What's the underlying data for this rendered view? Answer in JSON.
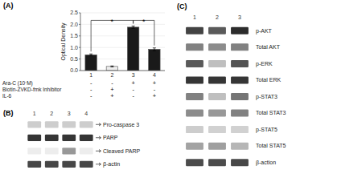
{
  "chart_data": [
    {
      "type": "bar",
      "title": "(A)",
      "categories": [
        "1",
        "2",
        "3",
        "4"
      ],
      "values": [
        0.68,
        0.18,
        1.88,
        0.92
      ],
      "errors": [
        0.04,
        0.02,
        0.05,
        0.06
      ],
      "colors": [
        "#1a1a1a",
        "#eeeeee",
        "#1a1a1a",
        "#1a1a1a"
      ],
      "ylabel": "Optical Density",
      "ylim": [
        0,
        2.5
      ],
      "yticks": [
        {
          "value": 0.0,
          "label": "0.0"
        },
        0.5,
        {
          "value": 1.0,
          "label": "1.0"
        },
        1.5,
        {
          "value": 2.0,
          "label": "2.0"
        },
        2.5
      ],
      "annotations": [
        {
          "text": "*",
          "from": "1",
          "to": "3"
        },
        {
          "text": "*",
          "from": "3",
          "to": "4"
        }
      ],
      "table": [
        {
          "label": "Ara-C (10⁻M)",
          "cells": [
            "-",
            "-",
            "+",
            "+"
          ]
        },
        {
          "label": "Biotin-ZVKD-fmk Inhibitor",
          "cells": [
            "-",
            "+",
            "-",
            "-"
          ]
        },
        {
          "label": "IL-6",
          "cells": [
            "-",
            "+",
            "-",
            "+"
          ]
        }
      ]
    },
    {
      "type": "heatmap",
      "title": "(B)",
      "categories": [
        "1",
        "2",
        "3",
        "4"
      ],
      "y_categories": [
        "Pro-caspase 3",
        "PARP",
        "Cleaved PARP",
        "β-actin"
      ],
      "cells": [
        [
          0.22,
          0.22,
          0.22,
          0.22
        ],
        [
          0.88,
          0.88,
          0.88,
          0.88
        ],
        [
          0.08,
          0.08,
          0.45,
          0.08
        ],
        [
          0.8,
          0.8,
          0.8,
          0.8
        ]
      ]
    },
    {
      "type": "heatmap",
      "title": "(C)",
      "categories": [
        "1",
        "2",
        "3"
      ],
      "y_categories": [
        "p-AKT",
        "Total AKT",
        "p-ERK",
        "Total ERK",
        "p-STAT3",
        "Total STAT3",
        "p-STAT5",
        "Total STAT5",
        "β-action"
      ],
      "cells": [
        [
          0.82,
          0.72,
          0.92
        ],
        [
          0.55,
          0.5,
          0.55
        ],
        [
          0.72,
          0.28,
          0.75
        ],
        [
          0.88,
          0.88,
          0.88
        ],
        [
          0.55,
          0.28,
          0.6
        ],
        [
          0.5,
          0.45,
          0.55
        ],
        [
          0.22,
          0.2,
          0.2
        ],
        [
          0.4,
          0.42,
          0.32
        ],
        [
          0.78,
          0.78,
          0.8
        ]
      ]
    }
  ]
}
